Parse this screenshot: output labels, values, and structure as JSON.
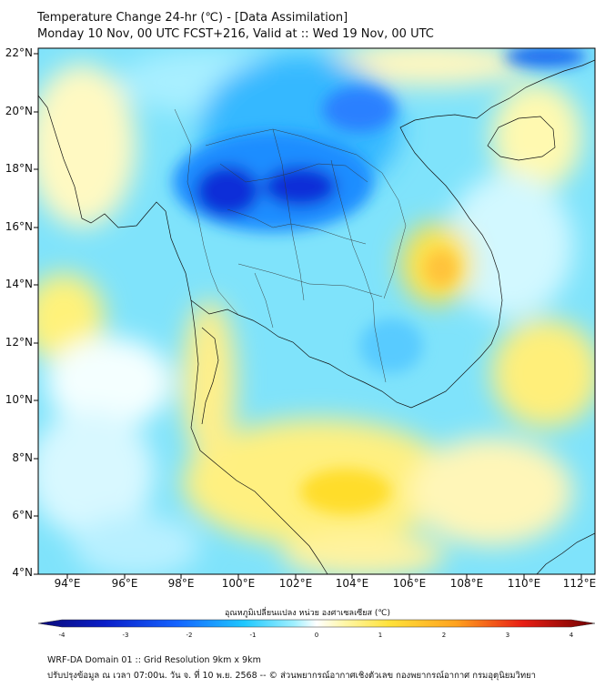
{
  "title_line1": "Temperature Change 24-hr (℃) - [Data Assimilation]",
  "title_line2": "Monday 10 Nov, 00 UTC FCST+216, Valid at :: Wed 19 Nov, 00 UTC",
  "lat_labels": [
    "22°N",
    "20°N",
    "18°N",
    "16°N",
    "14°N",
    "12°N",
    "10°N",
    "8°N",
    "6°N",
    "4°N"
  ],
  "lon_labels": [
    "94°E",
    "96°E",
    "98°E",
    "100°E",
    "102°E",
    "104°E",
    "106°E",
    "108°E",
    "110°E",
    "112°E"
  ],
  "colorbar": {
    "title": "อุณหภูมิเปลี่ยนแปลง หน่วย องศาเซลเซียส (℃)",
    "ticks": [
      "-4",
      "-3",
      "-2",
      "-1",
      "0",
      "1",
      "2",
      "3",
      "4"
    ],
    "min": -4,
    "max": 4
  },
  "footer_line1": "WRF-DA Domain 01 :: Grid Resolution 9km x 9km",
  "footer_line2": "ปรับปรุงข้อมูล ณ เวลา 07:00น. วัน จ. ที่ 10 พ.ย. 2568 -- © ส่วนพยากรณ์อากาศเชิงตัวเลข กองพยากรณ์อากาศ กรมอุตุนิยมวิทยา",
  "colors": {
    "dark_blue": "#0a1ec8",
    "blue": "#1464ff",
    "cyan": "#1ec8ff",
    "light_cyan": "#a0f0ff",
    "neutral": "#ffffff",
    "light_yellow": "#fff7a8",
    "yellow": "#ffe23a",
    "orange": "#ffa21e",
    "red": "#e81e14",
    "dark_red": "#6e0000"
  }
}
